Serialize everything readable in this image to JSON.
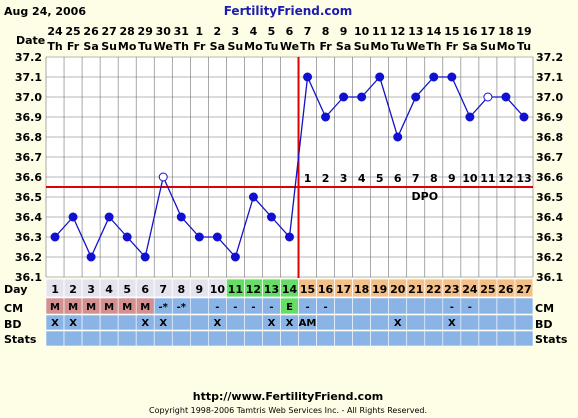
{
  "header": {
    "date": "Aug 24, 2006",
    "site": "FertilityFriend.com"
  },
  "row_labels": {
    "date": "Date",
    "day": "Day",
    "cm": "CM",
    "bd": "BD",
    "stats": "Stats",
    "dpo": "DPO"
  },
  "footer": {
    "url": "http://www.FertilityFriend.com",
    "copyright": "Copyright 1998-2006 Tamtris Web Services Inc. - All Rights Reserved."
  },
  "colors": {
    "background": "#fefee6",
    "line": "#1212c8",
    "marker": "#1010d0",
    "coverline": "#e00000",
    "grid": "#707070",
    "plot_bg": "#ffffff",
    "row_blue": "#8ab4e6",
    "menses": "#d29090",
    "fertile": "#66dd66",
    "luteal": "#f4c088",
    "preov": "#e4e4ee"
  },
  "chart_data": {
    "type": "line",
    "dates": [
      "24",
      "25",
      "26",
      "27",
      "28",
      "29",
      "30",
      "31",
      "1",
      "2",
      "3",
      "4",
      "5",
      "6",
      "7",
      "8",
      "9",
      "10",
      "11",
      "12",
      "13",
      "14",
      "15",
      "16",
      "17",
      "18",
      "19"
    ],
    "weekdays": [
      "Th",
      "Fr",
      "Sa",
      "Su",
      "Mo",
      "Tu",
      "We",
      "Th",
      "Fr",
      "Sa",
      "Su",
      "Mo",
      "Tu",
      "We",
      "Th",
      "Fr",
      "Sa",
      "Su",
      "Mo",
      "Tu",
      "We",
      "Th",
      "Fr",
      "Sa",
      "Su",
      "Mo",
      "Tu"
    ],
    "cycle_days": [
      "1",
      "2",
      "3",
      "4",
      "5",
      "6",
      "7",
      "8",
      "9",
      "10",
      "11",
      "12",
      "13",
      "14",
      "15",
      "16",
      "17",
      "18",
      "19",
      "20",
      "21",
      "22",
      "23",
      "24",
      "25",
      "26",
      "27"
    ],
    "series": [
      {
        "values": [
          36.3,
          36.4,
          36.2,
          36.4,
          36.3,
          36.2,
          36.6,
          36.4,
          36.3,
          36.3,
          36.2,
          36.5,
          36.4,
          36.3,
          37.1,
          36.9,
          37.0,
          37.0,
          37.1,
          36.8,
          37.0,
          37.1,
          37.1,
          36.9,
          37.0,
          37.0,
          36.9
        ],
        "open_markers": [
          6,
          24
        ]
      }
    ],
    "ylim": [
      36.1,
      37.2
    ],
    "yticks": [
      "36.1",
      "36.2",
      "36.3",
      "36.4",
      "36.5",
      "36.6",
      "36.7",
      "36.8",
      "36.9",
      "37.0",
      "37.1",
      "37.2"
    ],
    "coverline": 36.55,
    "ovulation_index": 13,
    "dpo_labels": [
      "1",
      "2",
      "3",
      "4",
      "5",
      "6",
      "7",
      "8",
      "9",
      "10",
      "11",
      "12",
      "13"
    ],
    "cm": [
      "M",
      "M",
      "M",
      "M",
      "M",
      "M",
      "-*",
      "-*",
      "",
      "-",
      "-",
      "-",
      "-",
      "E",
      "-",
      "-",
      "",
      "",
      "",
      "",
      "",
      "",
      "-",
      "-",
      "",
      "",
      ""
    ],
    "bd": [
      "X",
      "X",
      "",
      "",
      "",
      "X",
      "X",
      "",
      "",
      "X",
      "",
      "",
      "X",
      "X",
      "AM",
      "",
      "",
      "",
      "",
      "X",
      "",
      "",
      "X",
      "",
      "",
      "",
      ""
    ],
    "phase_colors": [
      "preov",
      "preov",
      "preov",
      "preov",
      "preov",
      "preov",
      "preov",
      "preov",
      "preov",
      "preov",
      "fertile",
      "fertile",
      "fertile",
      "fertile",
      "luteal",
      "luteal",
      "luteal",
      "luteal",
      "luteal",
      "luteal",
      "luteal",
      "luteal",
      "luteal",
      "luteal",
      "luteal",
      "luteal",
      "luteal"
    ],
    "cm_colors": [
      "menses",
      "menses",
      "menses",
      "menses",
      "menses",
      "menses",
      "row_blue",
      "row_blue",
      "row_blue",
      "row_blue",
      "row_blue",
      "row_blue",
      "row_blue",
      "fertile",
      "row_blue",
      "row_blue",
      "row_blue",
      "row_blue",
      "row_blue",
      "row_blue",
      "row_blue",
      "row_blue",
      "row_blue",
      "row_blue",
      "row_blue",
      "row_blue",
      "row_blue"
    ],
    "grid": true
  }
}
